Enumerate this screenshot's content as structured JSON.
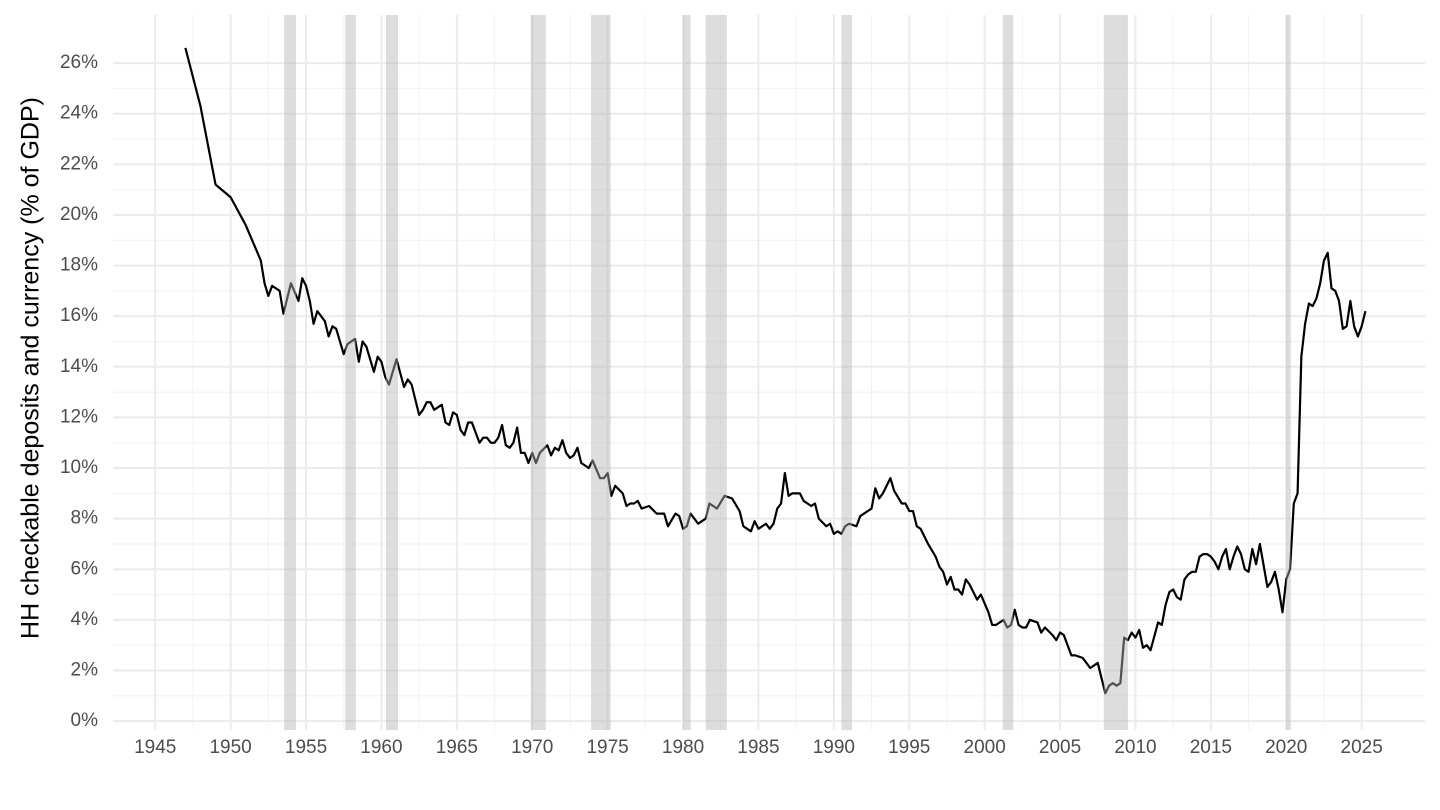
{
  "chart_data": {
    "type": "line",
    "ylabel": "HH checkable deposits and currency (% of GDP)",
    "color": "#000000",
    "shade_color": "#b4b4b4",
    "grid": true,
    "xlim": [
      1942.2,
      2029.2
    ],
    "ylim": [
      -0.35,
      27.9
    ],
    "xticks": [
      1945,
      1950,
      1955,
      1960,
      1965,
      1970,
      1975,
      1980,
      1985,
      1990,
      1995,
      2000,
      2005,
      2010,
      2015,
      2020,
      2025
    ],
    "yticks": [
      {
        "value": 0,
        "label": "0%"
      },
      {
        "value": 2,
        "label": "2%"
      },
      {
        "value": 4,
        "label": "4%"
      },
      {
        "value": 6,
        "label": "6%"
      },
      {
        "value": 8,
        "label": "8%"
      },
      {
        "value": 10,
        "label": "10%"
      },
      {
        "value": 12,
        "label": "12%"
      },
      {
        "value": 14,
        "label": "14%"
      },
      {
        "value": 16,
        "label": "16%"
      },
      {
        "value": 18,
        "label": "18%"
      },
      {
        "value": 20,
        "label": "20%"
      },
      {
        "value": 22,
        "label": "22%"
      },
      {
        "value": 24,
        "label": "24%"
      },
      {
        "value": 26,
        "label": "26%"
      }
    ],
    "shaded_ranges": [
      [
        1953.55,
        1954.34
      ],
      [
        1957.6,
        1958.3
      ],
      [
        1960.3,
        1961.1
      ],
      [
        1969.9,
        1970.9
      ],
      [
        1973.9,
        1975.2
      ],
      [
        1980.0,
        1980.5
      ],
      [
        1981.5,
        1982.9
      ],
      [
        1990.5,
        1991.2
      ],
      [
        2001.2,
        2001.9
      ],
      [
        2007.9,
        2009.5
      ],
      [
        2020.0,
        2020.3
      ]
    ],
    "x": [
      1947.0,
      1948.0,
      1949.0,
      1950.0,
      1951.0,
      1952.0,
      1952.25,
      1952.5,
      1952.75,
      1953.25,
      1953.5,
      1954.0,
      1954.5,
      1954.75,
      1955.0,
      1955.25,
      1955.5,
      1955.75,
      1956.25,
      1956.5,
      1956.75,
      1957.0,
      1957.5,
      1957.75,
      1958.25,
      1958.5,
      1958.75,
      1959.0,
      1959.5,
      1959.75,
      1960.0,
      1960.25,
      1960.5,
      1961.0,
      1961.5,
      1961.75,
      1962.0,
      1962.5,
      1962.75,
      1963.0,
      1963.25,
      1963.5,
      1964.0,
      1964.25,
      1964.5,
      1964.75,
      1965.0,
      1965.25,
      1965.5,
      1965.75,
      1966.0,
      1966.5,
      1966.75,
      1967.0,
      1967.25,
      1967.5,
      1967.75,
      1968.0,
      1968.25,
      1968.5,
      1968.75,
      1969.0,
      1969.25,
      1969.5,
      1969.75,
      1970.0,
      1970.25,
      1970.5,
      1971.0,
      1971.25,
      1971.5,
      1971.75,
      1972.0,
      1972.25,
      1972.5,
      1972.75,
      1973.0,
      1973.25,
      1973.5,
      1973.75,
      1974.0,
      1974.5,
      1974.75,
      1975.0,
      1975.25,
      1975.5,
      1976.0,
      1976.25,
      1976.5,
      1976.75,
      1977.0,
      1977.25,
      1977.75,
      1978.25,
      1978.75,
      1979.0,
      1979.5,
      1979.75,
      1980.0,
      1980.25,
      1980.5,
      1981.0,
      1981.25,
      1981.5,
      1981.75,
      1982.25,
      1982.75,
      1983.25,
      1983.75,
      1984.0,
      1984.25,
      1984.5,
      1984.75,
      1985.0,
      1985.5,
      1985.75,
      1986.0,
      1986.25,
      1986.5,
      1986.75,
      1987.0,
      1987.25,
      1987.75,
      1988.0,
      1988.5,
      1988.75,
      1989.0,
      1989.5,
      1989.75,
      1990.0,
      1990.25,
      1990.5,
      1990.75,
      1991.0,
      1991.5,
      1991.75,
      1992.0,
      1992.5,
      1992.75,
      1993.0,
      1993.25,
      1993.75,
      1994.0,
      1994.5,
      1994.75,
      1995.0,
      1995.25,
      1995.5,
      1995.75,
      1996.25,
      1996.75,
      1997.0,
      1997.25,
      1997.5,
      1997.75,
      1998.0,
      1998.25,
      1998.5,
      1998.75,
      1999.0,
      1999.5,
      1999.75,
      2000.25,
      2000.5,
      2000.75,
      2001.25,
      2001.5,
      2001.75,
      2002.0,
      2002.25,
      2002.5,
      2002.75,
      2003.0,
      2003.5,
      2003.75,
      2004.0,
      2004.5,
      2004.75,
      2005.0,
      2005.25,
      2005.75,
      2006.0,
      2006.5,
      2006.75,
      2007.0,
      2007.5,
      2007.75,
      2008.0,
      2008.25,
      2008.5,
      2008.75,
      2009.0,
      2009.25,
      2009.5,
      2009.75,
      2010.0,
      2010.25,
      2010.5,
      2010.75,
      2011.0,
      2011.5,
      2011.75,
      2012.0,
      2012.25,
      2012.5,
      2012.75,
      2013.0,
      2013.25,
      2013.5,
      2013.75,
      2014.0,
      2014.25,
      2014.5,
      2014.75,
      2015.0,
      2015.25,
      2015.5,
      2015.75,
      2016.0,
      2016.25,
      2016.5,
      2016.75,
      2017.0,
      2017.25,
      2017.5,
      2017.75,
      2018.0,
      2018.25,
      2018.75,
      2019.0,
      2019.25,
      2019.5,
      2019.75,
      2020.0,
      2020.25,
      2020.5,
      2020.75,
      2021.0,
      2021.25,
      2021.5,
      2021.75,
      2022.0,
      2022.25,
      2022.5,
      2022.75,
      2023.0,
      2023.25,
      2023.5,
      2023.75,
      2024.0,
      2024.25,
      2024.5,
      2024.75,
      2025.0,
      2025.25
    ],
    "values": [
      26.6,
      24.3,
      21.2,
      20.7,
      19.6,
      18.2,
      17.3,
      16.8,
      17.2,
      17.0,
      16.1,
      17.3,
      16.6,
      17.5,
      17.2,
      16.6,
      15.7,
      16.2,
      15.8,
      15.2,
      15.6,
      15.5,
      14.5,
      14.9,
      15.1,
      14.2,
      15.0,
      14.8,
      13.8,
      14.4,
      14.2,
      13.6,
      13.3,
      14.3,
      13.2,
      13.5,
      13.3,
      12.1,
      12.3,
      12.6,
      12.6,
      12.3,
      12.5,
      11.8,
      11.7,
      12.2,
      12.1,
      11.5,
      11.3,
      11.8,
      11.8,
      11.0,
      11.2,
      11.2,
      11.0,
      11.0,
      11.2,
      11.7,
      10.9,
      10.8,
      11.0,
      11.6,
      10.6,
      10.6,
      10.2,
      10.6,
      10.2,
      10.6,
      10.9,
      10.5,
      10.8,
      10.7,
      11.1,
      10.6,
      10.4,
      10.5,
      10.8,
      10.2,
      10.1,
      10.0,
      10.3,
      9.6,
      9.6,
      9.8,
      8.9,
      9.3,
      9.0,
      8.5,
      8.6,
      8.6,
      8.7,
      8.4,
      8.5,
      8.2,
      8.2,
      7.7,
      8.2,
      8.1,
      7.6,
      7.7,
      8.2,
      7.8,
      7.9,
      8.0,
      8.6,
      8.4,
      8.9,
      8.8,
      8.3,
      7.7,
      7.6,
      7.5,
      7.9,
      7.6,
      7.8,
      7.6,
      7.8,
      8.4,
      8.6,
      9.8,
      8.9,
      9.0,
      9.0,
      8.7,
      8.5,
      8.6,
      8.0,
      7.7,
      7.8,
      7.4,
      7.5,
      7.4,
      7.7,
      7.8,
      7.7,
      8.1,
      8.2,
      8.4,
      9.2,
      8.8,
      9.0,
      9.6,
      9.1,
      8.6,
      8.6,
      8.3,
      8.3,
      7.7,
      7.6,
      7.0,
      6.5,
      6.1,
      5.9,
      5.4,
      5.7,
      5.2,
      5.2,
      5.0,
      5.6,
      5.4,
      4.8,
      5.0,
      4.3,
      3.8,
      3.8,
      4.0,
      3.7,
      3.8,
      4.4,
      3.8,
      3.7,
      3.7,
      4.0,
      3.9,
      3.5,
      3.7,
      3.4,
      3.2,
      3.5,
      3.4,
      2.6,
      2.6,
      2.5,
      2.3,
      2.1,
      2.3,
      1.7,
      1.1,
      1.4,
      1.5,
      1.4,
      1.5,
      3.3,
      3.2,
      3.5,
      3.3,
      3.6,
      2.9,
      3.0,
      2.8,
      3.9,
      3.8,
      4.6,
      5.1,
      5.2,
      4.9,
      4.8,
      5.6,
      5.8,
      5.9,
      5.9,
      6.5,
      6.6,
      6.6,
      6.5,
      6.3,
      6.0,
      6.5,
      6.8,
      6.0,
      6.5,
      6.9,
      6.6,
      6.0,
      5.9,
      6.8,
      6.2,
      7.0,
      5.3,
      5.5,
      5.9,
      5.2,
      4.3,
      5.6,
      6.0,
      8.6,
      9.0,
      14.4,
      15.7,
      16.5,
      16.4,
      16.7,
      17.3,
      18.2,
      18.5,
      17.1,
      17.0,
      16.6,
      15.5,
      15.6,
      16.6,
      15.6,
      15.2,
      15.6,
      16.2
    ]
  }
}
